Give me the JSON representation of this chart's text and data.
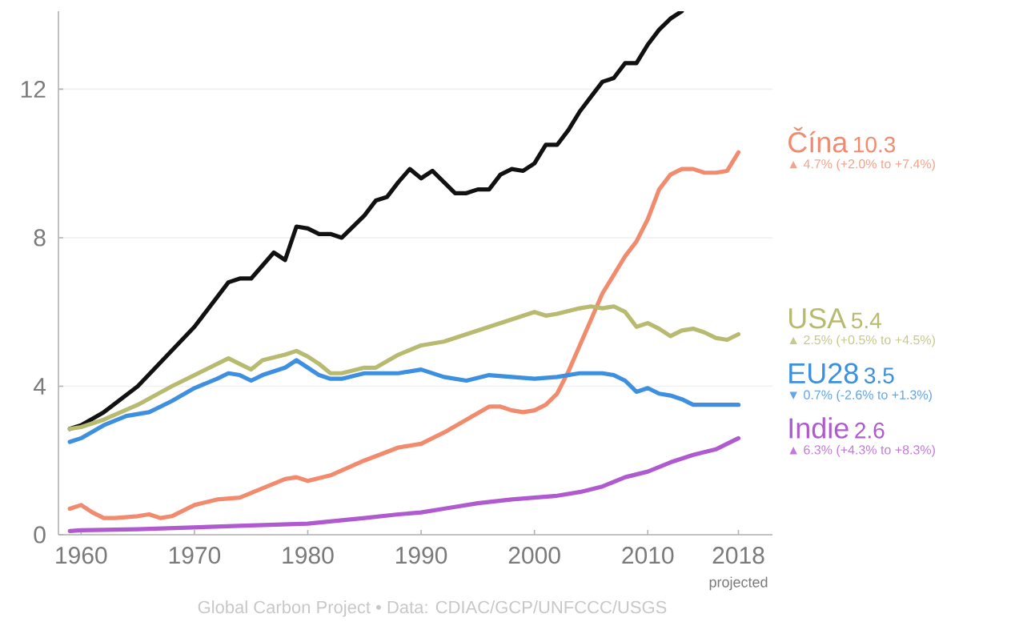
{
  "chart_data": {
    "type": "line",
    "xlim": [
      1958,
      2021
    ],
    "ylim": [
      0,
      14.1
    ],
    "xticks": [
      1960,
      1970,
      1980,
      1990,
      2000,
      2010,
      2018
    ],
    "yticks": [
      0,
      4,
      8,
      12
    ],
    "grid": "y",
    "series": [
      {
        "color": "#111111",
        "x": [
          1959,
          1960,
          1962,
          1965,
          1970,
          1973,
          1974,
          1975,
          1977,
          1978,
          1979,
          1980,
          1981,
          1982,
          1983,
          1985,
          1986,
          1987,
          1988,
          1989,
          1990,
          1991,
          1992,
          1993,
          1994,
          1995,
          1996,
          1997,
          1998,
          1999,
          2000,
          2001,
          2002,
          2003,
          2004,
          2005,
          2006,
          2007,
          2008,
          2009,
          2010,
          2011,
          2012,
          2013
        ],
        "values": [
          2.85,
          2.95,
          3.3,
          4.0,
          5.6,
          6.8,
          6.9,
          6.9,
          7.6,
          7.4,
          8.3,
          8.25,
          8.1,
          8.1,
          8.0,
          8.6,
          9.0,
          9.1,
          9.5,
          9.85,
          9.6,
          9.8,
          9.5,
          9.2,
          9.2,
          9.3,
          9.3,
          9.7,
          9.85,
          9.8,
          10.0,
          10.5,
          10.5,
          10.9,
          11.4,
          11.8,
          12.2,
          12.3,
          12.7,
          12.7,
          13.2,
          13.6,
          13.9,
          14.1
        ]
      },
      {
        "name": "Čína",
        "color": "#f28b6e",
        "x": [
          1959,
          1960,
          1961,
          1962,
          1963,
          1965,
          1966,
          1967,
          1968,
          1970,
          1972,
          1974,
          1976,
          1978,
          1979,
          1980,
          1982,
          1985,
          1988,
          1990,
          1992,
          1994,
          1996,
          1997,
          1998,
          1999,
          2000,
          2001,
          2002,
          2003,
          2004,
          2005,
          2006,
          2007,
          2008,
          2009,
          2010,
          2011,
          2012,
          2013,
          2014,
          2015,
          2016,
          2017,
          2018
        ],
        "values": [
          0.7,
          0.8,
          0.6,
          0.45,
          0.45,
          0.5,
          0.55,
          0.45,
          0.5,
          0.8,
          0.95,
          1.0,
          1.25,
          1.5,
          1.55,
          1.45,
          1.6,
          2.0,
          2.35,
          2.45,
          2.75,
          3.1,
          3.45,
          3.45,
          3.35,
          3.3,
          3.35,
          3.5,
          3.8,
          4.4,
          5.1,
          5.8,
          6.5,
          7.0,
          7.5,
          7.9,
          8.5,
          9.3,
          9.7,
          9.85,
          9.85,
          9.75,
          9.75,
          9.8,
          10.3
        ]
      },
      {
        "name": "USA",
        "color": "#b8ba70",
        "x": [
          1959,
          1960,
          1962,
          1965,
          1968,
          1970,
          1972,
          1973,
          1974,
          1975,
          1976,
          1978,
          1979,
          1980,
          1981,
          1982,
          1983,
          1985,
          1986,
          1988,
          1990,
          1992,
          1994,
          1996,
          1998,
          2000,
          2001,
          2002,
          2004,
          2005,
          2006,
          2007,
          2008,
          2009,
          2010,
          2011,
          2012,
          2013,
          2014,
          2015,
          2016,
          2017,
          2018
        ],
        "values": [
          2.85,
          2.9,
          3.1,
          3.5,
          4.0,
          4.3,
          4.6,
          4.75,
          4.6,
          4.45,
          4.7,
          4.85,
          4.95,
          4.8,
          4.6,
          4.35,
          4.35,
          4.5,
          4.5,
          4.85,
          5.1,
          5.2,
          5.4,
          5.6,
          5.8,
          6.0,
          5.9,
          5.95,
          6.1,
          6.15,
          6.1,
          6.15,
          6.0,
          5.6,
          5.7,
          5.55,
          5.35,
          5.5,
          5.55,
          5.45,
          5.3,
          5.25,
          5.4
        ]
      },
      {
        "name": "EU28",
        "color": "#3d8fe0",
        "x": [
          1959,
          1960,
          1962,
          1964,
          1966,
          1968,
          1970,
          1972,
          1973,
          1974,
          1975,
          1976,
          1978,
          1979,
          1980,
          1981,
          1982,
          1983,
          1985,
          1988,
          1990,
          1992,
          1994,
          1996,
          1998,
          2000,
          2002,
          2004,
          2006,
          2007,
          2008,
          2009,
          2010,
          2011,
          2012,
          2013,
          2014,
          2015,
          2016,
          2017,
          2018
        ],
        "values": [
          2.5,
          2.6,
          2.95,
          3.2,
          3.3,
          3.6,
          3.95,
          4.2,
          4.35,
          4.3,
          4.15,
          4.3,
          4.5,
          4.7,
          4.5,
          4.3,
          4.2,
          4.2,
          4.35,
          4.35,
          4.45,
          4.25,
          4.15,
          4.3,
          4.25,
          4.2,
          4.25,
          4.35,
          4.35,
          4.3,
          4.15,
          3.85,
          3.95,
          3.8,
          3.75,
          3.65,
          3.5,
          3.5,
          3.5,
          3.5,
          3.5
        ]
      },
      {
        "name": "Indie",
        "color": "#b05ad0",
        "x": [
          1959,
          1960,
          1965,
          1970,
          1975,
          1980,
          1985,
          1988,
          1990,
          1992,
          1995,
          1998,
          2000,
          2002,
          2004,
          2006,
          2008,
          2010,
          2012,
          2014,
          2016,
          2017,
          2018
        ],
        "values": [
          0.1,
          0.12,
          0.15,
          0.2,
          0.25,
          0.3,
          0.45,
          0.55,
          0.6,
          0.7,
          0.85,
          0.95,
          1.0,
          1.05,
          1.15,
          1.3,
          1.55,
          1.7,
          1.95,
          2.15,
          2.3,
          2.45,
          2.6
        ]
      }
    ],
    "annotations": [
      "10.3",
      "▲ 4.7% (+2.0% to +7.4%)",
      "5.4",
      "▲ 2.5% (+0.5% to +4.5%)",
      "3.5",
      "▼ 0.7% (-2.6% to +1.3%)",
      "2.6",
      "▲ 6.3% (+4.3% to +8.3%)",
      "projected",
      "Global Carbon Project • Data: CDIAC/GCP/UNFCCC/USGS"
    ]
  }
}
